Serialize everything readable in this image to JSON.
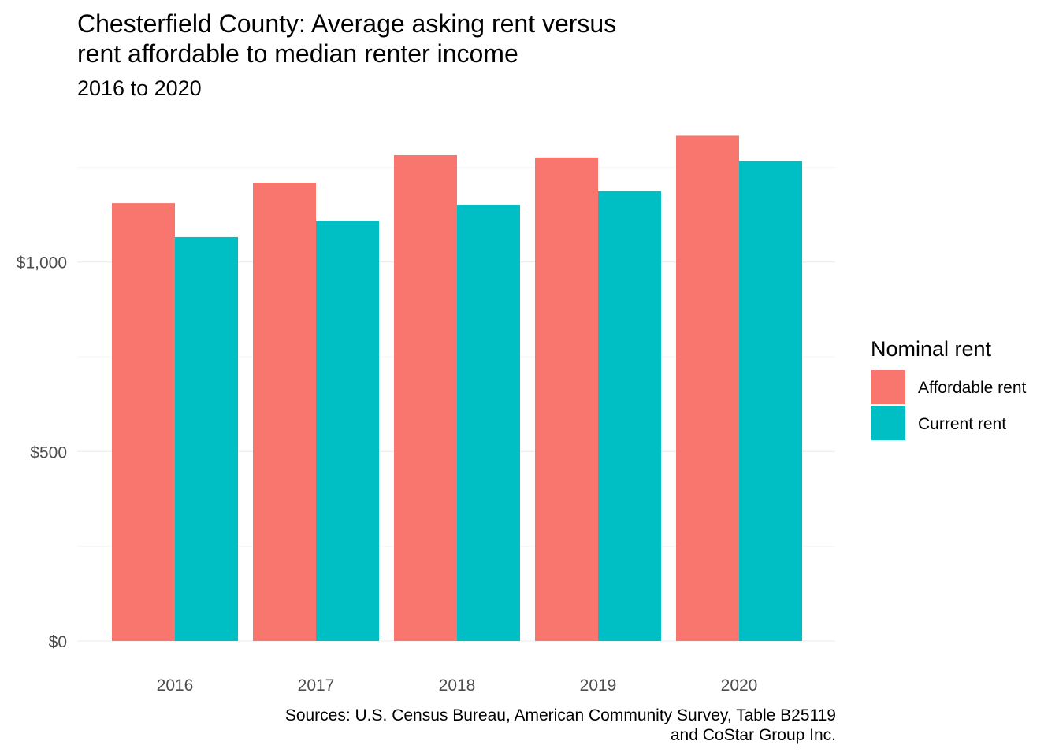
{
  "chart_data": {
    "type": "bar",
    "title_lines": [
      "Chesterfield County: Average asking rent versus",
      "rent affordable to median renter income"
    ],
    "subtitle": "2016 to 2020",
    "categories": [
      "2016",
      "2017",
      "2018",
      "2019",
      "2020"
    ],
    "series": [
      {
        "name": "Affordable rent",
        "color": "#F8766D",
        "values": [
          1155,
          1209,
          1282,
          1276,
          1333
        ]
      },
      {
        "name": "Current rent",
        "color": "#00BFC4",
        "values": [
          1066,
          1109,
          1151,
          1187,
          1266
        ]
      }
    ],
    "xlabel": "",
    "ylabel": "",
    "ylim": [
      0,
      1333
    ],
    "yticks": [
      {
        "value": 0,
        "label": "$0"
      },
      {
        "value": 500,
        "label": "$500"
      },
      {
        "value": 1000,
        "label": "$1,000"
      }
    ],
    "grid": true,
    "legend": {
      "title": "Nominal rent",
      "position": "right"
    },
    "caption_lines": [
      "Sources: U.S. Census Bureau, American Community Survey, Table B25119",
      "and CoStar Group Inc."
    ]
  }
}
